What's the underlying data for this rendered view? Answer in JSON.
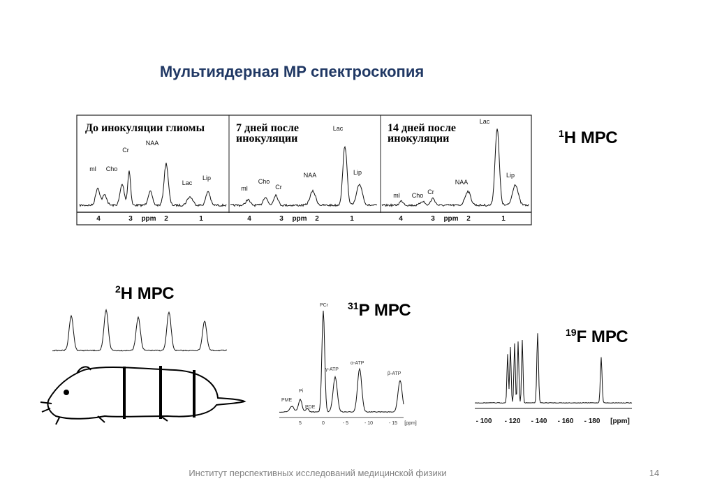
{
  "title": "Мультиядерная МР спектроскопия",
  "h1": {
    "sup": "1",
    "label": "H МРС",
    "panels": [
      {
        "caption": [
          "До инокуляции глиомы"
        ],
        "peaks": [
          "ml",
          "Cho",
          "Cr",
          "NAA",
          "Lac",
          "Lip"
        ],
        "axis": [
          "4",
          "3",
          "ppm",
          "2",
          "1"
        ]
      },
      {
        "caption": [
          "7 дней после",
          "инокуляции"
        ],
        "peaks": [
          "ml",
          "Cho",
          "Cr",
          "NAA",
          "Lac",
          "Lip"
        ],
        "axis": [
          "4",
          "3",
          "ppm",
          "2",
          "1"
        ]
      },
      {
        "caption": [
          "14 дней после",
          "инокуляции"
        ],
        "peaks": [
          "ml",
          "Cho",
          "Cr",
          "NAA",
          "Lac",
          "Lip"
        ],
        "axis": [
          "4",
          "3",
          "ppm",
          "2",
          "1"
        ]
      }
    ]
  },
  "h2": {
    "sup": "2",
    "label": "H МРС"
  },
  "p31": {
    "sup": "31",
    "label": "P МРС",
    "peaks": [
      "PCr",
      "PME",
      "Pi",
      "PDE",
      "γ-ATP",
      "α-ATP",
      "β-ATP"
    ],
    "axis": [
      "5",
      "0",
      "- 5",
      "- 10",
      "- 15",
      "[ppm]"
    ]
  },
  "f19": {
    "sup": "19",
    "label": "F МРС",
    "axis": [
      "- 100",
      "- 120",
      "- 140",
      "- 160",
      "- 180",
      "[ppm]"
    ]
  },
  "footer": {
    "institute": "Институт перспективных исследований медицинской физики",
    "page": "14"
  }
}
